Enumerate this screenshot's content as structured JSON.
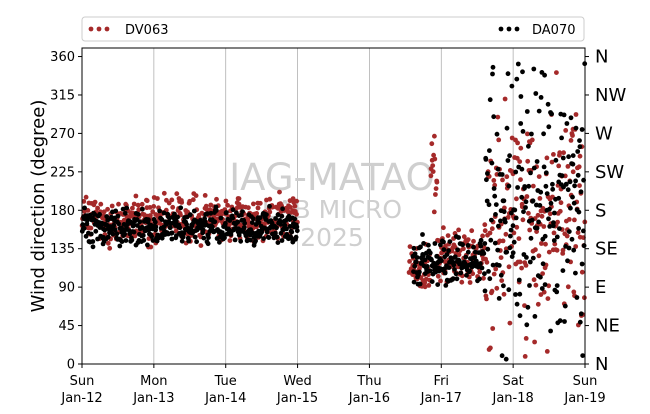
{
  "chart_data": {
    "type": "scatter",
    "ylabel": "Wind direction (degree)",
    "ylim": [
      0,
      370
    ],
    "y_ticks": [
      0,
      45,
      90,
      135,
      180,
      225,
      270,
      315,
      360
    ],
    "y_tick_labels": [
      "0",
      "45",
      "90",
      "135",
      "180",
      "225",
      "270",
      "315",
      "360"
    ],
    "x_range": [
      "Jan-12",
      "Jan-19"
    ],
    "x_ticks": [
      {
        "day": "Sun",
        "date": "Jan-12"
      },
      {
        "day": "Mon",
        "date": "Jan-13"
      },
      {
        "day": "Tue",
        "date": "Jan-14"
      },
      {
        "day": "Wed",
        "date": "Jan-15"
      },
      {
        "day": "Thu",
        "date": "Jan-16"
      },
      {
        "day": "Fri",
        "date": "Jan-17"
      },
      {
        "day": "Sat",
        "date": "Jan-18"
      },
      {
        "day": "Sun",
        "date": "Jan-19"
      }
    ],
    "compass_labels": [
      {
        "value": 0,
        "label": "N"
      },
      {
        "value": 45,
        "label": "NE"
      },
      {
        "value": 90,
        "label": "E"
      },
      {
        "value": 135,
        "label": "SE"
      },
      {
        "value": 180,
        "label": "S"
      },
      {
        "value": 225,
        "label": "SW"
      },
      {
        "value": 270,
        "label": "W"
      },
      {
        "value": 315,
        "label": "NW"
      },
      {
        "value": 360,
        "label": "N"
      }
    ],
    "grid": "vertical lines at day boundaries",
    "legend_placement": "top, above plot",
    "watermark_lines": [
      "IAG-MATAO",
      "LAB MICRO",
      "2025"
    ],
    "series": [
      {
        "name": "DV063",
        "color": "#a52a2a",
        "segments": [
          {
            "start_day": 0.0,
            "end_day": 3.0,
            "mean": 170,
            "spread": 22
          },
          {
            "start_day": 4.55,
            "end_day": 4.85,
            "mean": 110,
            "spread": 25
          },
          {
            "start_day": 4.85,
            "end_day": 4.95,
            "mean": 230,
            "spread": 55
          },
          {
            "start_day": 4.95,
            "end_day": 5.6,
            "mean": 125,
            "spread": 25
          },
          {
            "start_day": 5.6,
            "end_day": 7.0,
            "mean": 170,
            "spread": 115
          }
        ]
      },
      {
        "name": "DA070",
        "color": "#000000",
        "segments": [
          {
            "start_day": 0.0,
            "end_day": 3.0,
            "mean": 160,
            "spread": 18
          },
          {
            "start_day": 4.6,
            "end_day": 5.6,
            "mean": 120,
            "spread": 22
          },
          {
            "start_day": 5.6,
            "end_day": 7.0,
            "mean": 190,
            "spread": 150
          }
        ]
      }
    ]
  }
}
